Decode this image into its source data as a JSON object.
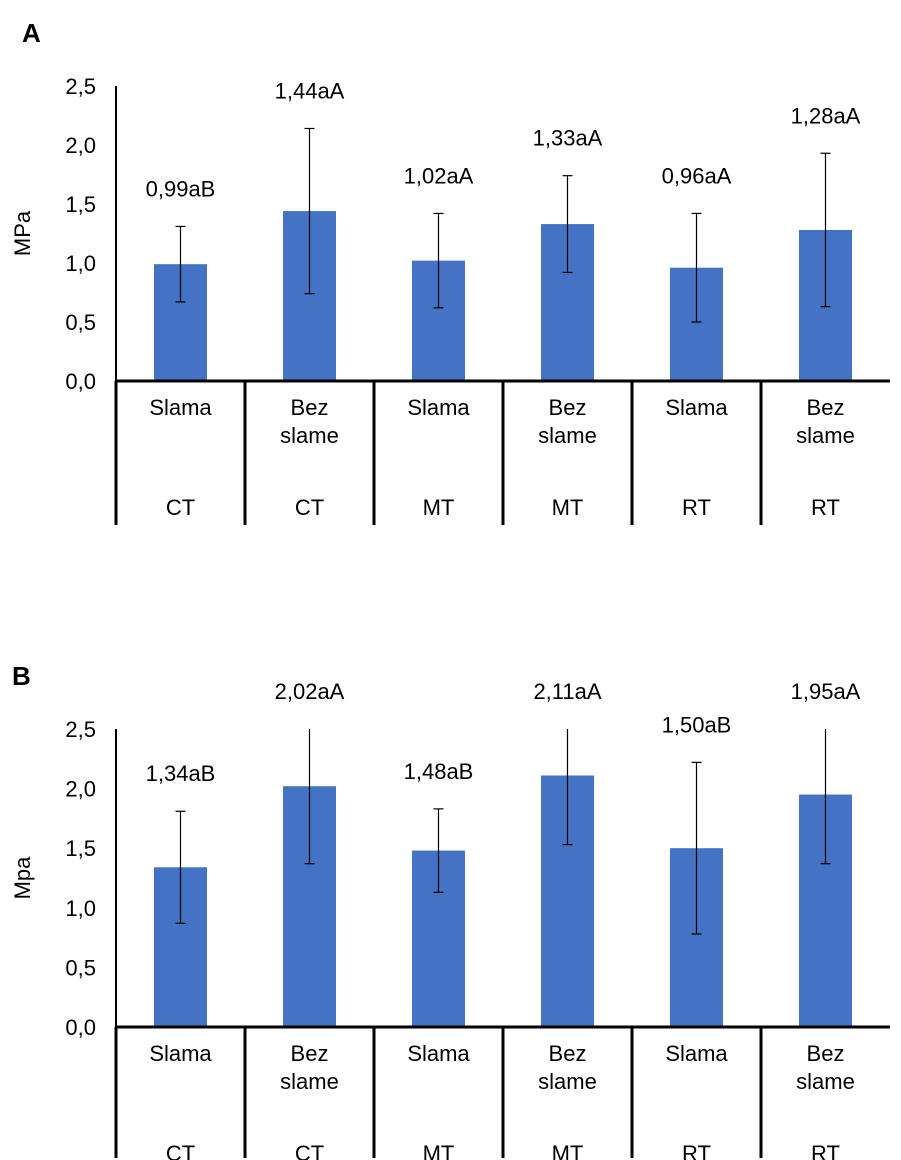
{
  "chart_data": [
    {
      "type": "bar",
      "panel_label": "A",
      "ylabel": "MPa",
      "ylim": [
        0,
        2.5
      ],
      "yticks": [
        "0,0",
        "0,5",
        "1,0",
        "1,5",
        "2,0",
        "2,5"
      ],
      "ytick_values": [
        0,
        0.5,
        1.0,
        1.5,
        2.0,
        2.5
      ],
      "categories": [
        {
          "sub": [
            "Slama"
          ],
          "group": "CT"
        },
        {
          "sub": [
            "Bez",
            "slame"
          ],
          "group": "CT"
        },
        {
          "sub": [
            "Slama"
          ],
          "group": "MT"
        },
        {
          "sub": [
            "Bez",
            "slame"
          ],
          "group": "MT"
        },
        {
          "sub": [
            "Slama"
          ],
          "group": "RT"
        },
        {
          "sub": [
            "Bez",
            "slame"
          ],
          "group": "RT"
        }
      ],
      "values": [
        0.99,
        1.44,
        1.02,
        1.33,
        0.96,
        1.28
      ],
      "error": [
        0.32,
        0.7,
        0.4,
        0.41,
        0.46,
        0.65
      ],
      "data_labels": [
        "0,99aB",
        "1,44aA",
        "1,02aA",
        "1,33aA",
        "0,96aA",
        "1,28aA"
      ],
      "bar_color": "#4472C4"
    },
    {
      "type": "bar",
      "panel_label": "B",
      "ylabel": "Mpa",
      "ylim": [
        0,
        2.5
      ],
      "yticks": [
        "0,0",
        "0,5",
        "1,0",
        "1,5",
        "2,0",
        "2,5"
      ],
      "ytick_values": [
        0,
        0.5,
        1.0,
        1.5,
        2.0,
        2.5
      ],
      "categories": [
        {
          "sub": [
            "Slama"
          ],
          "group": "CT"
        },
        {
          "sub": [
            "Bez",
            "slame"
          ],
          "group": "CT"
        },
        {
          "sub": [
            "Slama"
          ],
          "group": "MT"
        },
        {
          "sub": [
            "Bez",
            "slame"
          ],
          "group": "MT"
        },
        {
          "sub": [
            "Slama"
          ],
          "group": "RT"
        },
        {
          "sub": [
            "Bez",
            "slame"
          ],
          "group": "RT"
        }
      ],
      "values": [
        1.34,
        2.02,
        1.48,
        2.11,
        1.5,
        1.95
      ],
      "error": [
        0.47,
        0.65,
        0.35,
        0.58,
        0.72,
        0.58
      ],
      "data_labels": [
        "1,34aB",
        "2,02aA",
        "1,48aB",
        "2,11aA",
        "1,50aB",
        "1,95aA"
      ],
      "bar_color": "#4472C4"
    }
  ]
}
